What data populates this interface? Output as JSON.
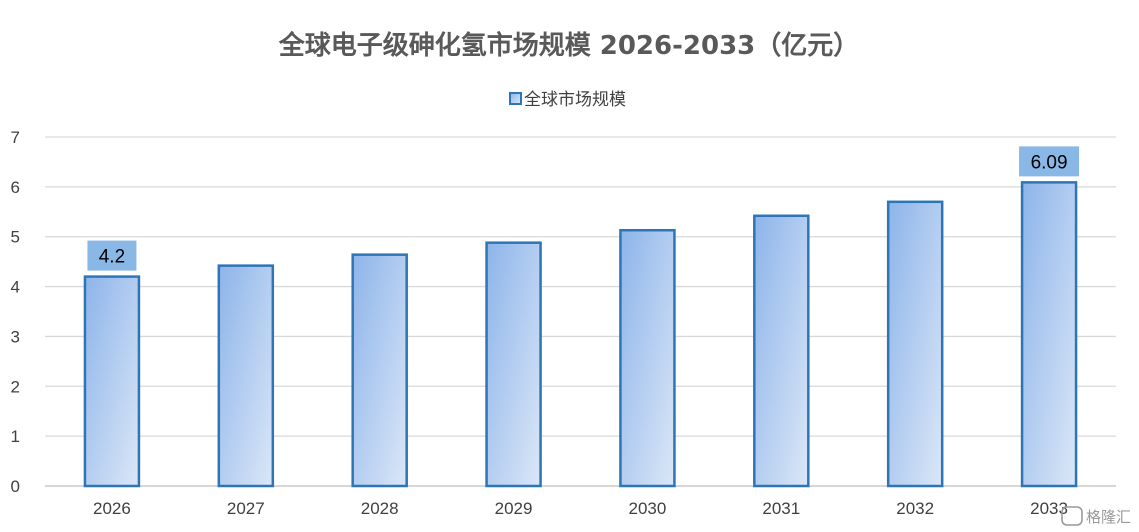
{
  "chart_data": {
    "type": "bar",
    "title": "全球电子级砷化氢市场规模 2026-2033（亿元）",
    "categories": [
      "2026",
      "2027",
      "2028",
      "2029",
      "2030",
      "2031",
      "2032",
      "2033"
    ],
    "series": [
      {
        "name": "全球市场规模",
        "values": [
          4.2,
          4.42,
          4.64,
          4.88,
          5.13,
          5.42,
          5.7,
          6.09
        ]
      }
    ],
    "data_labels": [
      {
        "category": "2026",
        "text": "4.2"
      },
      {
        "category": "2033",
        "text": "6.09"
      }
    ],
    "ylim": [
      0,
      7
    ],
    "yticks": [
      "0",
      "1",
      "2",
      "3",
      "4",
      "5",
      "6",
      "7"
    ],
    "xlabel": "",
    "ylabel": "",
    "grid": true,
    "legend_position": "top-center",
    "colors": {
      "bar_stroke": "#2e75b6",
      "bar_fill_dark": "#8db4ea",
      "bar_fill_light": "#dbe7f7",
      "label_box": "#8ab8e6",
      "grid": "#d9d9d9",
      "axis": "#bfbfbf"
    }
  },
  "watermark": {
    "text": "格隆汇",
    "icon": "gelonghui-logo-icon"
  }
}
